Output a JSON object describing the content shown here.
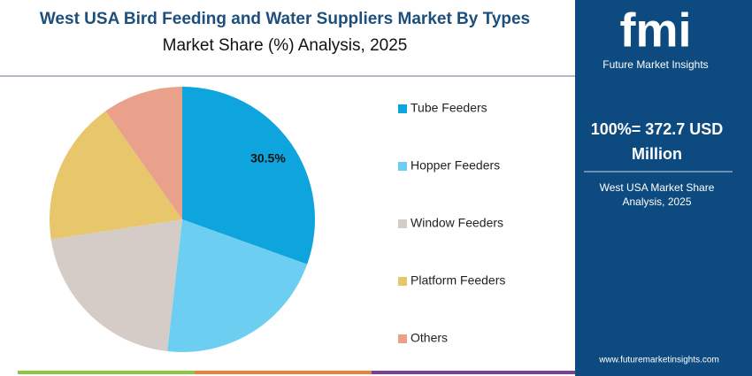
{
  "chart_data": {
    "type": "pie",
    "title": "West USA Bird Feeding and Water Suppliers Market By Types",
    "subtitle": "Market Share (%) Analysis, 2025",
    "categories": [
      "Tube Feeders",
      "Hopper Feeders",
      "Window Feeders",
      "Platform Feeders",
      "Others"
    ],
    "values": [
      30.5,
      21.3,
      20.8,
      17.6,
      9.8
    ],
    "value_labels": [
      "30.5%",
      null,
      null,
      null,
      null
    ],
    "colors": [
      "#0ea5df",
      "#6ccff2",
      "#d5ccc8",
      "#e8c66c",
      "#e9a18b"
    ],
    "legend": "right"
  },
  "panel": {
    "logo": "fmi",
    "brand": "Future Market Insights",
    "total": "100%= 372.7 USD Million",
    "caption": "West USA Market Share Analysis, 2025",
    "website": "www.futuremarketinsights.com"
  }
}
